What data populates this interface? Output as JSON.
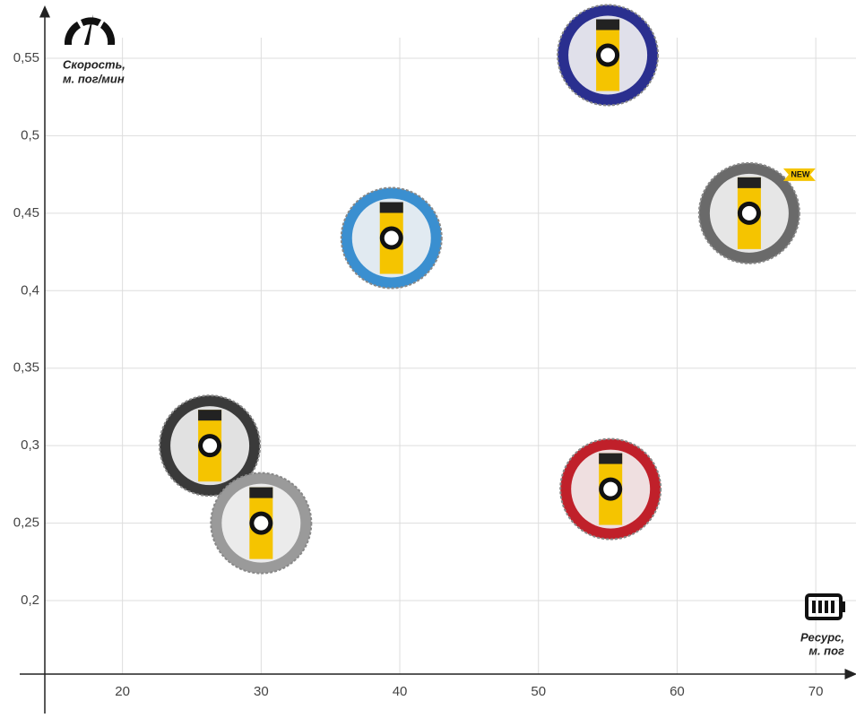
{
  "chart_data": {
    "type": "scatter",
    "ylabel_lines": [
      "Скорость,",
      "м. пог/мин"
    ],
    "xlabel_lines": [
      "Ресурс,",
      "м. пог"
    ],
    "x": [
      55.0,
      39.4,
      65.2,
      26.3,
      30.0,
      55.2
    ],
    "y": [
      0.552,
      0.434,
      0.45,
      0.3,
      0.25,
      0.272
    ],
    "colors": [
      "#2a2f8f",
      "#3a8fd0",
      "#6a6a6a",
      "#3a3a3a",
      "#9a9a9a",
      "#c0202a"
    ],
    "annotations": [
      {
        "text": "NEW",
        "point": 2
      }
    ],
    "xlim": [
      14.4,
      72.9
    ],
    "ylim": [
      0.1526,
      0.5818
    ],
    "xticks": [
      20,
      30,
      40,
      50,
      60,
      70
    ],
    "yticks": [
      {
        "value": 0.2,
        "label": "0,2"
      },
      {
        "value": 0.25,
        "label": "0,25"
      },
      {
        "value": 0.3,
        "label": "0,3"
      },
      {
        "value": 0.35,
        "label": "0,35"
      },
      {
        "value": 0.4,
        "label": "0,4"
      },
      {
        "value": 0.45,
        "label": "0,45"
      },
      {
        "value": 0.5,
        "label": "0,5"
      },
      {
        "value": 0.55,
        "label": "0,55"
      }
    ],
    "grid": true
  }
}
